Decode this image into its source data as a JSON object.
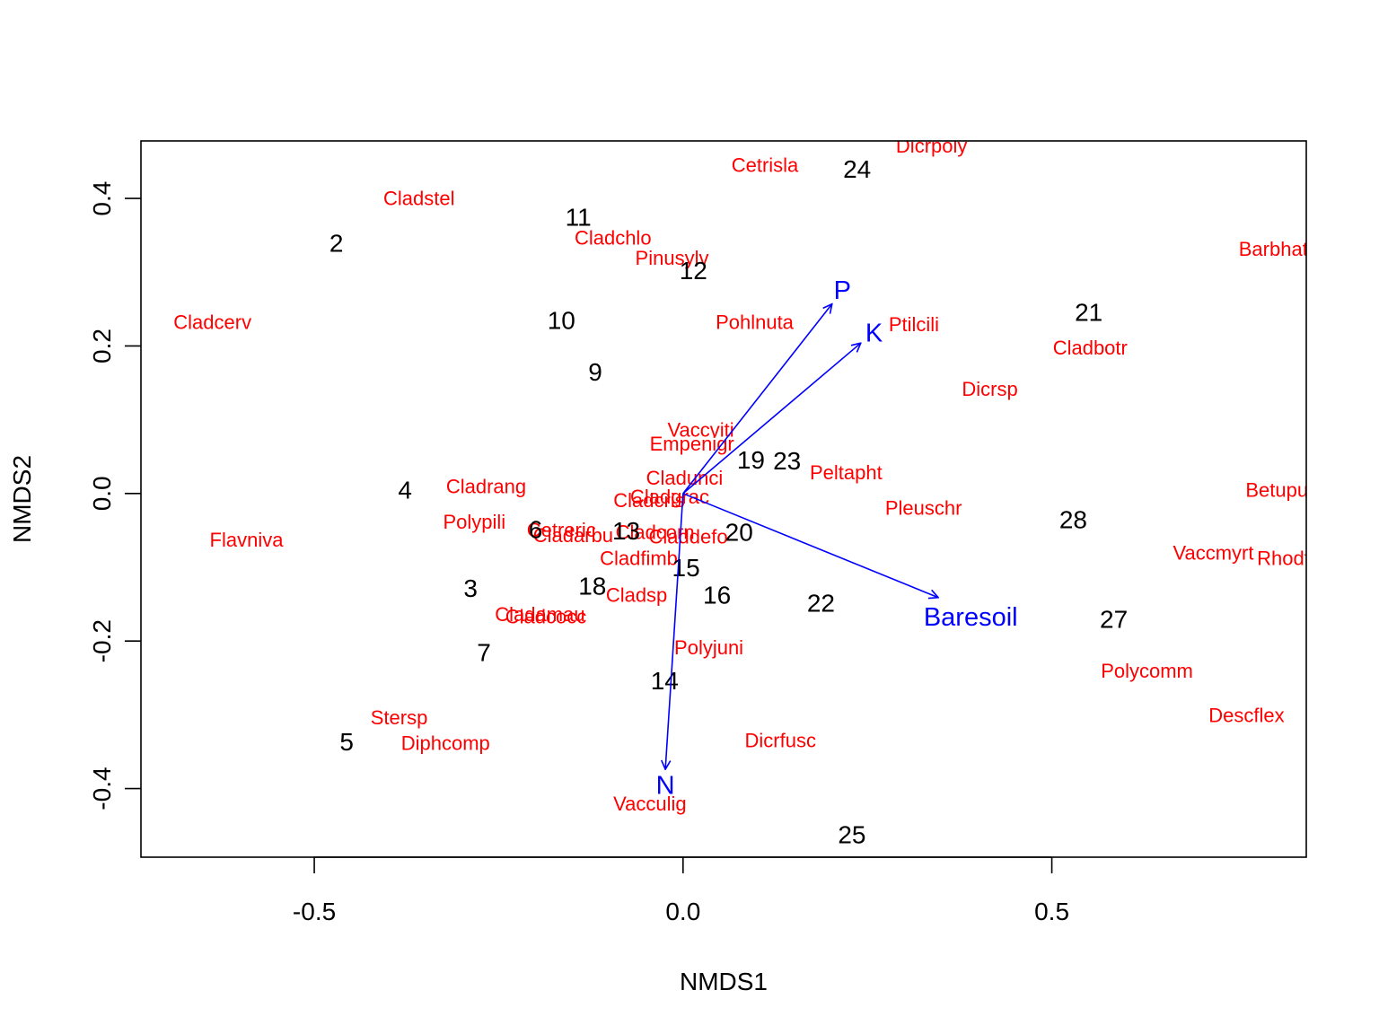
{
  "chart_data": {
    "type": "scatter",
    "xlabel": "NMDS1",
    "ylabel": "NMDS2",
    "xlim": [
      -0.735,
      0.845
    ],
    "ylim": [
      -0.493,
      0.478
    ],
    "x_ticks": [
      {
        "value": -0.5,
        "label": "-0.5"
      },
      {
        "value": 0.0,
        "label": "0.0"
      },
      {
        "value": 0.5,
        "label": "0.5"
      }
    ],
    "y_ticks": [
      {
        "value": -0.4,
        "label": "-0.4"
      },
      {
        "value": -0.2,
        "label": "-0.2"
      },
      {
        "value": 0.0,
        "label": "0.0"
      },
      {
        "value": 0.2,
        "label": "0.2"
      },
      {
        "value": 0.4,
        "label": "0.4"
      }
    ],
    "site_color": "#000000",
    "species_color": "#ff0000",
    "vector_color": "#0000ff",
    "sites": [
      {
        "label": "2",
        "x": -0.47,
        "y": 0.34
      },
      {
        "label": "11",
        "x": -0.142,
        "y": 0.375
      },
      {
        "label": "24",
        "x": 0.236,
        "y": 0.44
      },
      {
        "label": "12",
        "x": 0.014,
        "y": 0.303
      },
      {
        "label": "10",
        "x": -0.165,
        "y": 0.235
      },
      {
        "label": "21",
        "x": 0.55,
        "y": 0.246
      },
      {
        "label": "9",
        "x": -0.119,
        "y": 0.165
      },
      {
        "label": "19",
        "x": 0.092,
        "y": 0.046
      },
      {
        "label": "23",
        "x": 0.141,
        "y": 0.045
      },
      {
        "label": "4",
        "x": -0.377,
        "y": 0.005
      },
      {
        "label": "28",
        "x": 0.529,
        "y": -0.035
      },
      {
        "label": "6",
        "x": -0.2,
        "y": -0.048
      },
      {
        "label": "13",
        "x": -0.077,
        "y": -0.05
      },
      {
        "label": "20",
        "x": 0.076,
        "y": -0.052
      },
      {
        "label": "15",
        "x": 0.004,
        "y": -0.1
      },
      {
        "label": "3",
        "x": -0.288,
        "y": -0.128
      },
      {
        "label": "18",
        "x": -0.123,
        "y": -0.125
      },
      {
        "label": "16",
        "x": 0.046,
        "y": -0.137
      },
      {
        "label": "22",
        "x": 0.187,
        "y": -0.148
      },
      {
        "label": "27",
        "x": 0.584,
        "y": -0.17
      },
      {
        "label": "7",
        "x": -0.27,
        "y": -0.215
      },
      {
        "label": "14",
        "x": -0.025,
        "y": -0.253
      },
      {
        "label": "5",
        "x": -0.456,
        "y": -0.336
      },
      {
        "label": "25",
        "x": 0.229,
        "y": -0.462
      }
    ],
    "species": [
      {
        "label": "Dicrpoly",
        "x": 0.337,
        "y": 0.472
      },
      {
        "label": "Cetrisla",
        "x": 0.111,
        "y": 0.446
      },
      {
        "label": "Cladstel",
        "x": -0.358,
        "y": 0.401
      },
      {
        "label": "Cladchlo",
        "x": -0.095,
        "y": 0.347
      },
      {
        "label": "Pinusylv",
        "x": -0.015,
        "y": 0.32
      },
      {
        "label": "Barbhatc",
        "x": 0.807,
        "y": 0.332
      },
      {
        "label": "Cladcerv",
        "x": -0.638,
        "y": 0.233
      },
      {
        "label": "Pohlnuta",
        "x": 0.097,
        "y": 0.233
      },
      {
        "label": "Ptilcili",
        "x": 0.313,
        "y": 0.23
      },
      {
        "label": "Cladbotr",
        "x": 0.552,
        "y": 0.198
      },
      {
        "label": "Dicrsp",
        "x": 0.416,
        "y": 0.142
      },
      {
        "label": "Vaccviti",
        "x": 0.024,
        "y": 0.087
      },
      {
        "label": "Empenigr",
        "x": 0.012,
        "y": 0.068
      },
      {
        "label": "Peltapht",
        "x": 0.221,
        "y": 0.029
      },
      {
        "label": "Cladrang",
        "x": -0.267,
        "y": 0.01
      },
      {
        "label": "Cladunci",
        "x": 0.002,
        "y": 0.022
      },
      {
        "label": "Cladgrac",
        "x": -0.018,
        "y": -0.004
      },
      {
        "label": "Cladcris",
        "x": -0.046,
        "y": -0.009
      },
      {
        "label": "Betupube",
        "x": 0.82,
        "y": 0.005
      },
      {
        "label": "Pleuschr",
        "x": 0.326,
        "y": -0.019
      },
      {
        "label": "Polypili",
        "x": -0.283,
        "y": -0.038
      },
      {
        "label": "Flavniva",
        "x": -0.592,
        "y": -0.062
      },
      {
        "label": "Cetreric",
        "x": -0.165,
        "y": -0.049
      },
      {
        "label": "Cladarbu",
        "x": -0.149,
        "y": -0.056
      },
      {
        "label": "Claddefo",
        "x": 0.007,
        "y": -0.058
      },
      {
        "label": "Cladcorn",
        "x": -0.038,
        "y": -0.052
      },
      {
        "label": "Vaccmyrt",
        "x": 0.719,
        "y": -0.08
      },
      {
        "label": "Rhodtome",
        "x": 0.84,
        "y": -0.087
      },
      {
        "label": "Cladfimb",
        "x": -0.06,
        "y": -0.087
      },
      {
        "label": "Cladsp",
        "x": -0.063,
        "y": -0.137
      },
      {
        "label": "Cladamau",
        "x": -0.194,
        "y": -0.163
      },
      {
        "label": "Cladcocc",
        "x": -0.186,
        "y": -0.166
      },
      {
        "label": "Polyjuni",
        "x": 0.035,
        "y": -0.208
      },
      {
        "label": "Polycomm",
        "x": 0.629,
        "y": -0.24
      },
      {
        "label": "Descflex",
        "x": 0.764,
        "y": -0.3
      },
      {
        "label": "Stersp",
        "x": -0.385,
        "y": -0.303
      },
      {
        "label": "Diphcomp",
        "x": -0.322,
        "y": -0.338
      },
      {
        "label": "Dicrfusc",
        "x": 0.132,
        "y": -0.334
      },
      {
        "label": "Vacculig",
        "x": -0.045,
        "y": -0.42
      }
    ],
    "vectors": [
      {
        "label": "P",
        "x": 0.202,
        "y": 0.257,
        "label_x": 0.216,
        "label_y": 0.276
      },
      {
        "label": "K",
        "x": 0.241,
        "y": 0.204,
        "label_x": 0.259,
        "label_y": 0.218
      },
      {
        "label": "Baresoil",
        "x": 0.346,
        "y": -0.141,
        "label_x": 0.39,
        "label_y": -0.167
      },
      {
        "label": "N",
        "x": -0.024,
        "y": -0.374,
        "label_x": -0.024,
        "label_y": -0.395
      }
    ]
  }
}
